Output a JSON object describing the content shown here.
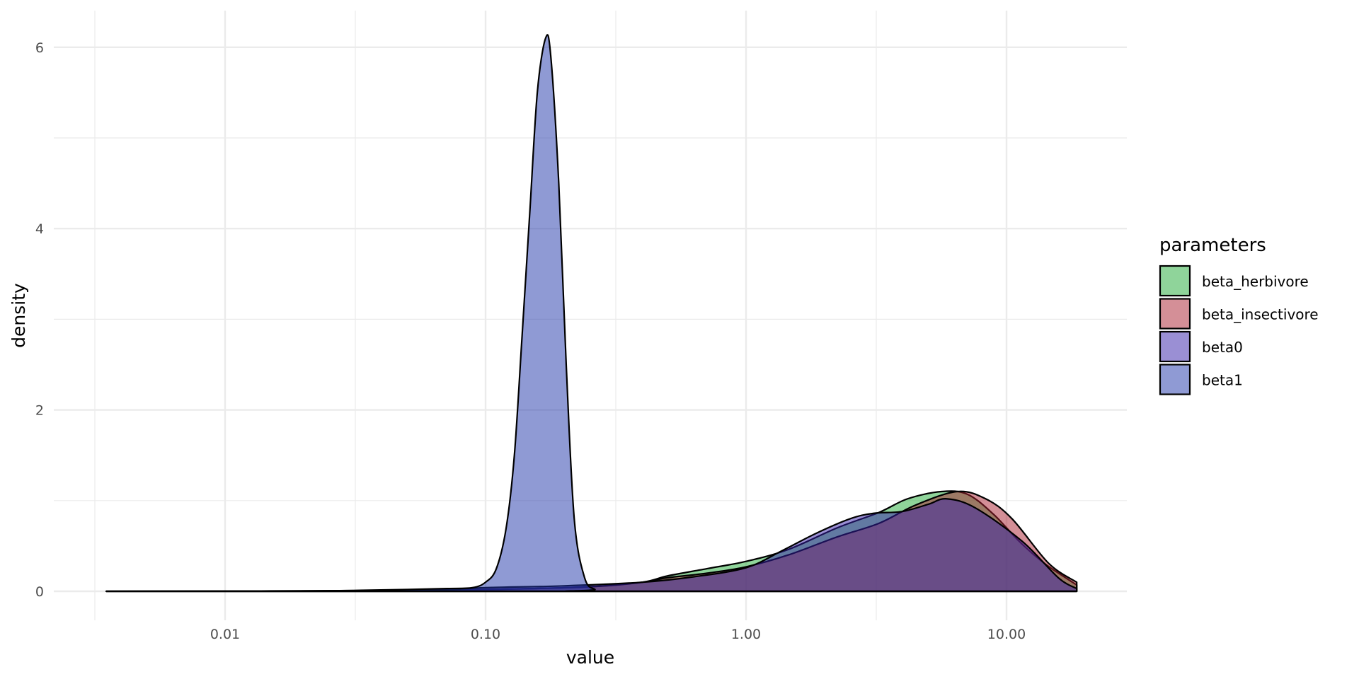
{
  "chart_data": {
    "type": "area",
    "subtype": "density",
    "title": "",
    "xlabel": "value",
    "ylabel": "density",
    "x_scale": "log10",
    "xlim": [
      0.0035,
      19
    ],
    "ylim": [
      0,
      6.2
    ],
    "x_ticks": [
      0.01,
      0.1,
      1,
      10
    ],
    "x_tick_labels": [
      "0.01",
      "0.10",
      "1.00",
      "10.00"
    ],
    "y_ticks": [
      0,
      2,
      4,
      6
    ],
    "y_tick_labels": [
      "0",
      "2",
      "4",
      "6"
    ],
    "grid": true,
    "legend": {
      "title": "parameters",
      "position": "right"
    },
    "fill_opacity": 0.5,
    "outline_color": "#000000",
    "series": [
      {
        "name": "beta_herbivore",
        "color": "#20aa36",
        "x": [
          0.0035,
          0.032,
          0.1,
          0.25,
          0.4,
          0.5,
          0.71,
          1,
          1.45,
          2.24,
          3.24,
          4.17,
          5.62,
          7.08,
          8.91,
          11.2,
          14.1,
          18.6
        ],
        "y": [
          0,
          0.005,
          0.02,
          0.05,
          0.1,
          0.17,
          0.25,
          0.33,
          0.46,
          0.7,
          0.87,
          1.02,
          1.1,
          1.07,
          0.85,
          0.55,
          0.3,
          0.07
        ]
      },
      {
        "name": "beta_insectivore",
        "color": "#aa2030",
        "x": [
          0.0035,
          0.032,
          0.1,
          0.25,
          0.4,
          0.5,
          0.71,
          1,
          1.45,
          2.24,
          3.24,
          4.47,
          6.46,
          8.32,
          10.5,
          14.5,
          18.6
        ],
        "y": [
          0,
          0.005,
          0.02,
          0.05,
          0.1,
          0.15,
          0.2,
          0.27,
          0.4,
          0.6,
          0.75,
          0.95,
          1.1,
          1.02,
          0.8,
          0.31,
          0.1
        ]
      },
      {
        "name": "beta0",
        "color": "#3520aa",
        "x": [
          0.0035,
          0.05,
          0.1,
          0.2,
          0.4,
          0.63,
          1,
          1.38,
          1.86,
          2.51,
          3.09,
          3.98,
          5.01,
          5.89,
          7.59,
          11.5,
          15.8,
          18.6
        ],
        "y": [
          0,
          0.01,
          0.04,
          0.06,
          0.1,
          0.16,
          0.26,
          0.45,
          0.64,
          0.8,
          0.86,
          0.88,
          0.96,
          1.02,
          0.92,
          0.55,
          0.15,
          0.03
        ]
      },
      {
        "name": "beta1",
        "color": "#2035aa",
        "x": [
          0.0035,
          0.016,
          0.032,
          0.05,
          0.071,
          0.089,
          0.1,
          0.11,
          0.12,
          0.129,
          0.138,
          0.148,
          0.158,
          0.17,
          0.178,
          0.191,
          0.204,
          0.219,
          0.24,
          0.263,
          0.282,
          18.6
        ],
        "y": [
          0,
          0,
          0.01,
          0.02,
          0.03,
          0.04,
          0.1,
          0.25,
          0.7,
          1.5,
          2.8,
          4.2,
          5.5,
          6.1,
          5.9,
          4.5,
          2.5,
          0.8,
          0.15,
          0.02,
          0,
          0
        ]
      }
    ]
  }
}
